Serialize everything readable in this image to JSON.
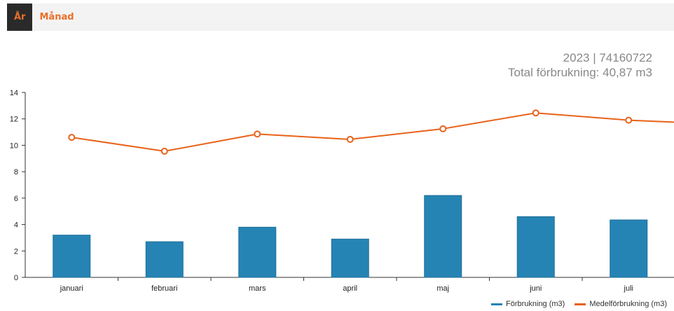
{
  "tabs": [
    {
      "label": "År",
      "active": true
    },
    {
      "label": "Månad",
      "active": false
    }
  ],
  "title": {
    "line1": "2023 | 74160722",
    "line2": "Total förbrukning: 40,87 m3"
  },
  "chart_data": {
    "type": "bar",
    "categories": [
      "januari",
      "februari",
      "mars",
      "april",
      "maj",
      "juni",
      "juli"
    ],
    "series": [
      {
        "name": "Förbrukning (m3)",
        "type": "bar",
        "color": "#2584b4",
        "values": [
          3.2,
          2.7,
          3.8,
          2.9,
          6.2,
          4.6,
          4.35
        ]
      },
      {
        "name": "Medelförbrukning (m3)",
        "type": "line",
        "color": "#e8621a",
        "values": [
          10.6,
          9.55,
          10.85,
          10.45,
          11.25,
          12.45,
          11.9
        ]
      }
    ],
    "ylim": [
      0,
      14
    ],
    "yticks": [
      0,
      2,
      4,
      6,
      8,
      10,
      12,
      14
    ],
    "line_continues_right_to": 11.6,
    "legend_position": "bottom-right",
    "grid": false
  }
}
